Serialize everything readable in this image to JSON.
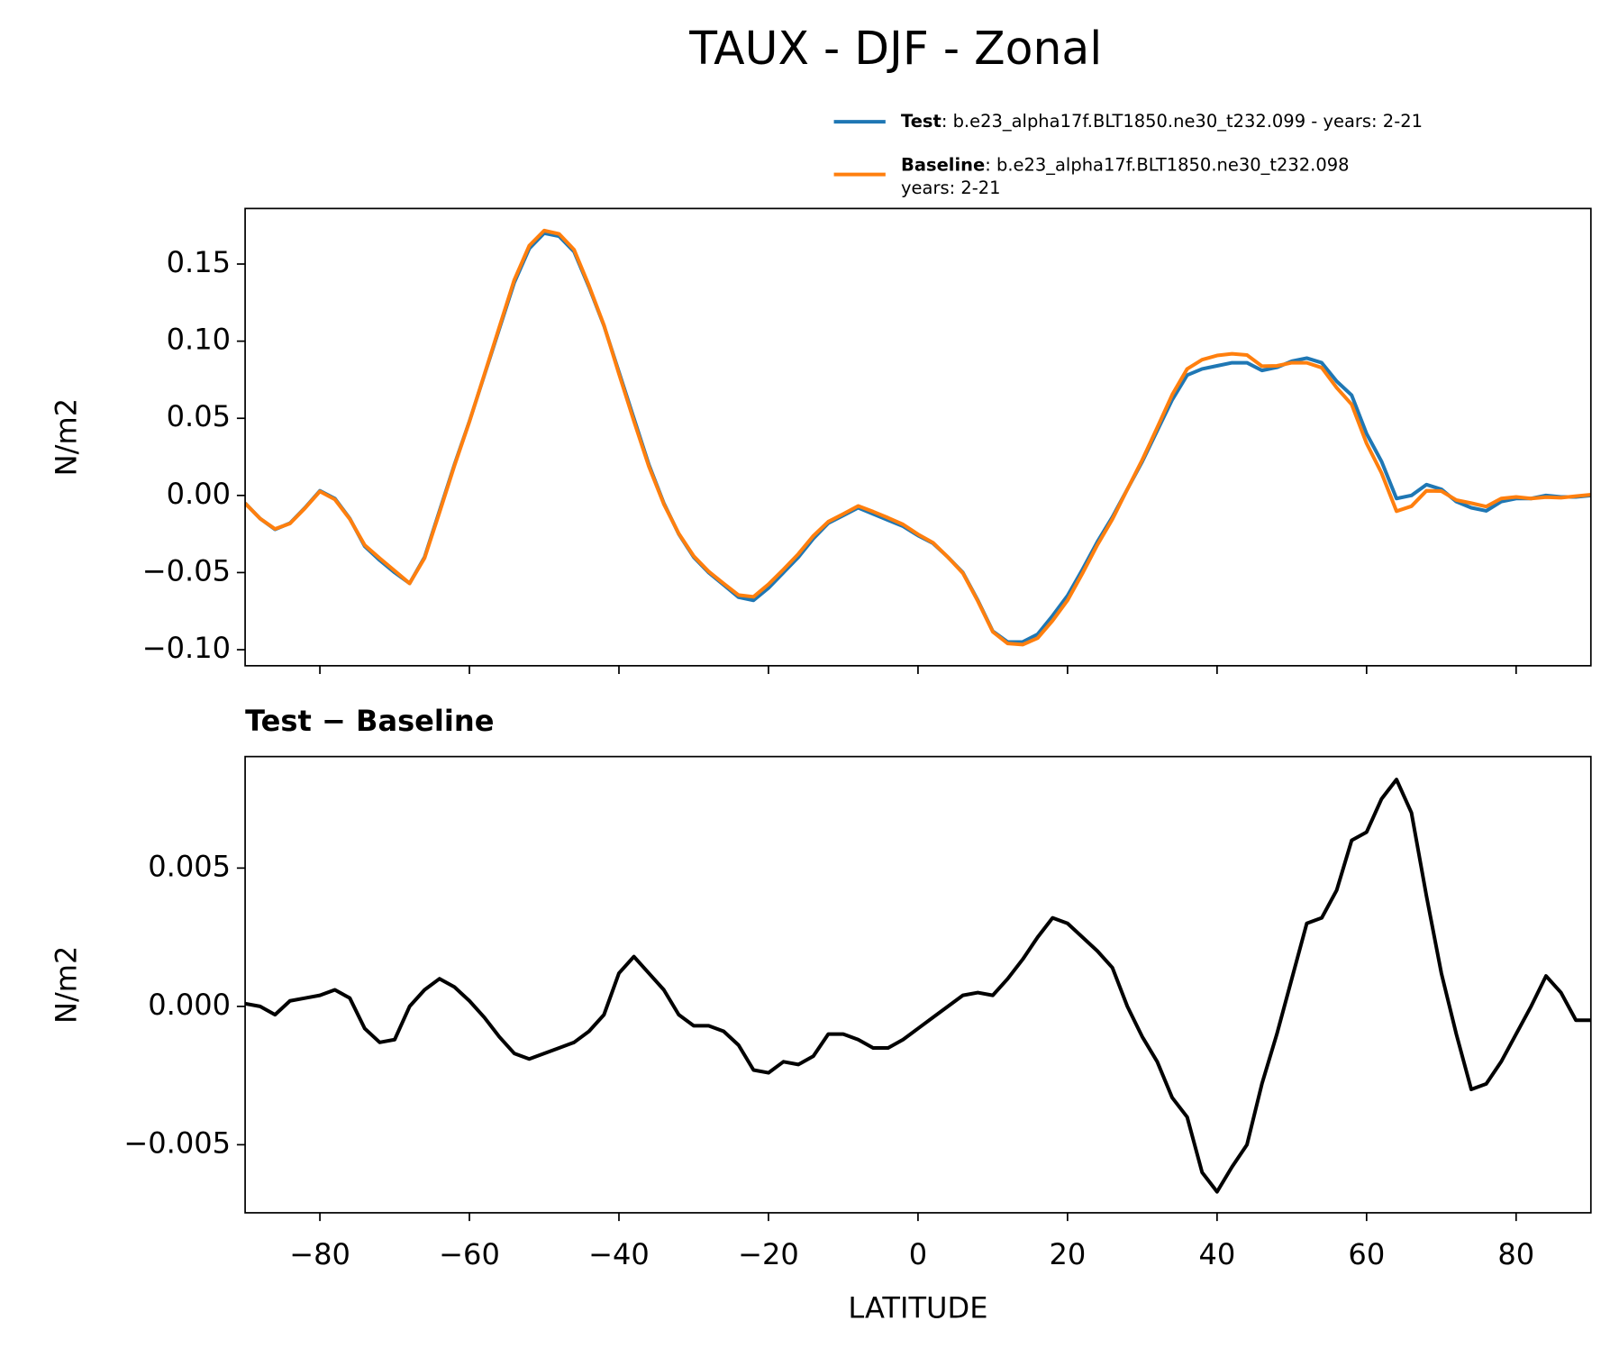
{
  "title": "TAUX - DJF - Zonal",
  "chart_data": [
    {
      "type": "line",
      "ylabel": "N/m2",
      "x": [
        -90,
        -88,
        -86,
        -84,
        -82,
        -80,
        -78,
        -76,
        -74,
        -72,
        -70,
        -68,
        -66,
        -64,
        -62,
        -60,
        -58,
        -56,
        -54,
        -52,
        -50,
        -48,
        -46,
        -44,
        -42,
        -40,
        -38,
        -36,
        -34,
        -32,
        -30,
        -28,
        -26,
        -24,
        -22,
        -20,
        -18,
        -16,
        -14,
        -12,
        -10,
        -8,
        -6,
        -4,
        -2,
        0,
        2,
        4,
        6,
        8,
        10,
        12,
        14,
        16,
        18,
        20,
        22,
        24,
        26,
        28,
        30,
        32,
        34,
        36,
        38,
        40,
        42,
        44,
        46,
        48,
        50,
        52,
        54,
        56,
        58,
        60,
        62,
        64,
        66,
        68,
        70,
        72,
        74,
        76,
        78,
        80,
        82,
        84,
        86,
        88,
        90
      ],
      "xlim": [
        -90,
        90
      ],
      "xticks": [
        -80,
        -60,
        -40,
        -20,
        0,
        20,
        40,
        60,
        80
      ],
      "ylim": [
        -0.1104,
        0.186
      ],
      "yticks": [
        {
          "value": -0.1,
          "label": "−0.10"
        },
        {
          "value": -0.05,
          "label": "−0.05"
        },
        {
          "value": 0,
          "label": "0.00"
        },
        {
          "value": 0.05,
          "label": "0.05"
        },
        {
          "value": 0.1,
          "label": "0.10"
        },
        {
          "value": 0.15,
          "label": "0.15"
        }
      ],
      "series": [
        {
          "name": "Test",
          "label_lines": [
            ": b.e23_alpha17f.BLT1850.ne30_t232.099 - years: 2-21"
          ],
          "color": "#1f77b4",
          "values": [
            -0.005,
            -0.015,
            -0.022,
            -0.018,
            -0.008,
            0.003,
            -0.002,
            -0.015,
            -0.033,
            -0.042,
            -0.05,
            -0.057,
            -0.04,
            -0.01,
            0.02,
            0.048,
            0.078,
            0.108,
            0.138,
            0.16,
            0.17,
            0.168,
            0.158,
            0.135,
            0.11,
            0.08,
            0.05,
            0.02,
            -0.005,
            -0.025,
            -0.04,
            -0.05,
            -0.058,
            -0.066,
            -0.068,
            -0.06,
            -0.05,
            -0.04,
            -0.028,
            -0.018,
            -0.013,
            -0.008,
            -0.012,
            -0.016,
            -0.02,
            -0.026,
            -0.031,
            -0.04,
            -0.05,
            -0.068,
            -0.088,
            -0.095,
            -0.095,
            -0.09,
            -0.078,
            -0.065,
            -0.048,
            -0.03,
            -0.014,
            0.004,
            0.022,
            0.042,
            0.062,
            0.078,
            0.082,
            0.084,
            0.086,
            0.086,
            0.081,
            0.083,
            0.087,
            0.089,
            0.086,
            0.074,
            0.065,
            0.04,
            0.022,
            -0.002,
            0,
            0.007,
            0.004,
            -0.004,
            -0.008,
            -0.01,
            -0.004,
            -0.002,
            -0.002,
            0,
            -0.001,
            -0.001,
            0
          ]
        },
        {
          "name": "Baseline",
          "label_lines": [
            ": b.e23_alpha17f.BLT1850.ne30_t232.098",
            "years: 2-21"
          ],
          "color": "#ff7f0e",
          "values": [
            -0.0051,
            -0.015,
            -0.0217,
            -0.0182,
            -0.0083,
            0.0026,
            -0.0026,
            -0.0153,
            -0.0322,
            -0.0407,
            -0.0488,
            -0.057,
            -0.0406,
            -0.011,
            0.0193,
            0.0478,
            0.0784,
            0.1091,
            0.1397,
            0.1619,
            0.1717,
            0.1695,
            0.1593,
            0.1359,
            0.1103,
            0.0788,
            0.0482,
            0.0188,
            -0.0056,
            -0.0247,
            -0.0393,
            -0.0493,
            -0.0571,
            -0.0646,
            -0.0657,
            -0.0576,
            -0.048,
            -0.0379,
            -0.0262,
            -0.017,
            -0.012,
            -0.0068,
            -0.0105,
            -0.0145,
            -0.0188,
            -0.0252,
            -0.0306,
            -0.04,
            -0.0504,
            -0.0685,
            -0.0884,
            -0.096,
            -0.0967,
            -0.0925,
            -0.0812,
            -0.068,
            -0.0505,
            -0.032,
            -0.0154,
            0.004,
            0.0231,
            0.044,
            0.0653,
            0.082,
            0.088,
            0.0907,
            0.0918,
            0.091,
            0.0838,
            0.084,
            0.086,
            0.086,
            0.0828,
            0.0698,
            0.059,
            0.0337,
            0.0145,
            -0.0102,
            -0.007,
            0.003,
            0.0028,
            -0.003,
            -0.005,
            -0.0072,
            -0.002,
            -0.001,
            -0.002,
            -0.0011,
            -0.0015,
            -0.0005,
            0.0005
          ]
        }
      ]
    },
    {
      "type": "line",
      "title": "Test − Baseline",
      "ylabel": "N/m2",
      "xlabel": "LATITUDE",
      "x": [
        -90,
        -88,
        -86,
        -84,
        -82,
        -80,
        -78,
        -76,
        -74,
        -72,
        -70,
        -68,
        -66,
        -64,
        -62,
        -60,
        -58,
        -56,
        -54,
        -52,
        -50,
        -48,
        -46,
        -44,
        -42,
        -40,
        -38,
        -36,
        -34,
        -32,
        -30,
        -28,
        -26,
        -24,
        -22,
        -20,
        -18,
        -16,
        -14,
        -12,
        -10,
        -8,
        -6,
        -4,
        -2,
        0,
        2,
        4,
        6,
        8,
        10,
        12,
        14,
        16,
        18,
        20,
        22,
        24,
        26,
        28,
        30,
        32,
        34,
        36,
        38,
        40,
        42,
        44,
        46,
        48,
        50,
        52,
        54,
        56,
        58,
        60,
        62,
        64,
        66,
        68,
        70,
        72,
        74,
        76,
        78,
        80,
        82,
        84,
        86,
        88,
        90
      ],
      "xlim": [
        -90,
        90
      ],
      "xticks": [
        {
          "value": -80,
          "label": "−80"
        },
        {
          "value": -60,
          "label": "−60"
        },
        {
          "value": -40,
          "label": "−40"
        },
        {
          "value": -20,
          "label": "−20"
        },
        0,
        20,
        40,
        60,
        80
      ],
      "ylim": [
        -0.00746,
        0.00903
      ],
      "yticks": [
        {
          "value": -0.005,
          "label": "−0.005"
        },
        {
          "value": 0,
          "label": "0.000"
        },
        {
          "value": 0.005,
          "label": "0.005"
        }
      ],
      "series": [
        {
          "color": "#000000",
          "values": [
            0.0001,
            0,
            -0.0003,
            0.0002,
            0.0003,
            0.0004,
            0.0006,
            0.0003,
            -0.0008,
            -0.0013,
            -0.0012,
            0,
            0.0006,
            0.001,
            0.0007,
            0.0002,
            -0.0004,
            -0.0011,
            -0.0017,
            -0.0019,
            -0.0017,
            -0.0015,
            -0.0013,
            -0.0009,
            -0.0003,
            0.0012,
            0.0018,
            0.0012,
            0.0006,
            -0.0003,
            -0.0007,
            -0.0007,
            -0.0009,
            -0.0014,
            -0.0023,
            -0.0024,
            -0.002,
            -0.0021,
            -0.0018,
            -0.001,
            -0.001,
            -0.0012,
            -0.0015,
            -0.0015,
            -0.0012,
            -0.0008,
            -0.0004,
            0,
            0.0004,
            0.0005,
            0.0004,
            0.001,
            0.0017,
            0.0025,
            0.0032,
            0.003,
            0.0025,
            0.002,
            0.0014,
            0,
            -0.0011,
            -0.002,
            -0.0033,
            -0.004,
            -0.006,
            -0.0067,
            -0.0058,
            -0.005,
            -0.0028,
            -0.001,
            0.001,
            0.003,
            0.0032,
            0.0042,
            0.006,
            0.0063,
            0.0075,
            0.0082,
            0.007,
            0.004,
            0.0012,
            -0.001,
            -0.003,
            -0.0028,
            -0.002,
            -0.001,
            0,
            0.0011,
            0.0005,
            -0.0005,
            -0.0005
          ]
        }
      ]
    }
  ]
}
